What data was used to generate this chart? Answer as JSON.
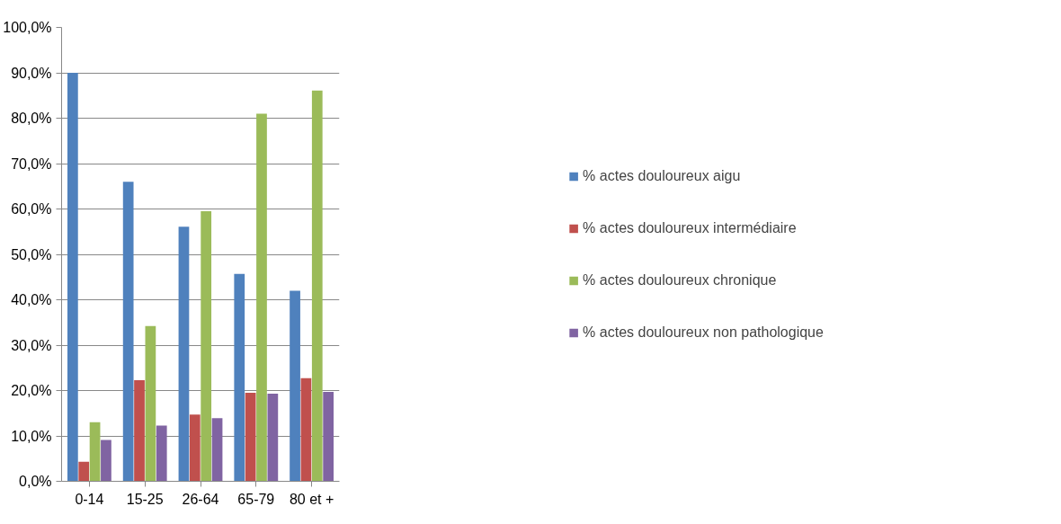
{
  "chart_data": {
    "type": "bar",
    "categories": [
      "0-14",
      "15-25",
      "26-64",
      "65-79",
      "80 et +"
    ],
    "series": [
      {
        "name": "% actes douloureux aigu",
        "color": "#4f81bd",
        "values": [
          90.0,
          66.0,
          56.1,
          45.7,
          42.0
        ]
      },
      {
        "name": "% actes douloureux intermédiaire",
        "color": "#c0504d",
        "values": [
          4.3,
          22.3,
          14.7,
          19.5,
          22.7
        ]
      },
      {
        "name": "% actes douloureux chronique",
        "color": "#9bbb59",
        "values": [
          13.0,
          34.2,
          59.5,
          81.0,
          86.1
        ]
      },
      {
        "name": "% actes douloureux non pathologique",
        "color": "#8064a2",
        "values": [
          9.1,
          12.3,
          13.9,
          19.3,
          19.7
        ]
      }
    ],
    "ylim": [
      0,
      100
    ],
    "yticks": [
      {
        "value": 0,
        "label": "0,0%"
      },
      {
        "value": 10,
        "label": "10,0%"
      },
      {
        "value": 20,
        "label": "20,0%"
      },
      {
        "value": 30,
        "label": "30,0%"
      },
      {
        "value": 40,
        "label": "40,0%"
      },
      {
        "value": 50,
        "label": "50,0%"
      },
      {
        "value": 60,
        "label": "60,0%"
      },
      {
        "value": 70,
        "label": "70,0%"
      },
      {
        "value": 80,
        "label": "80,0%"
      },
      {
        "value": 90,
        "label": "90,0%"
      },
      {
        "value": 100,
        "label": "100,0%"
      }
    ],
    "grid": "y",
    "legend": "right"
  }
}
